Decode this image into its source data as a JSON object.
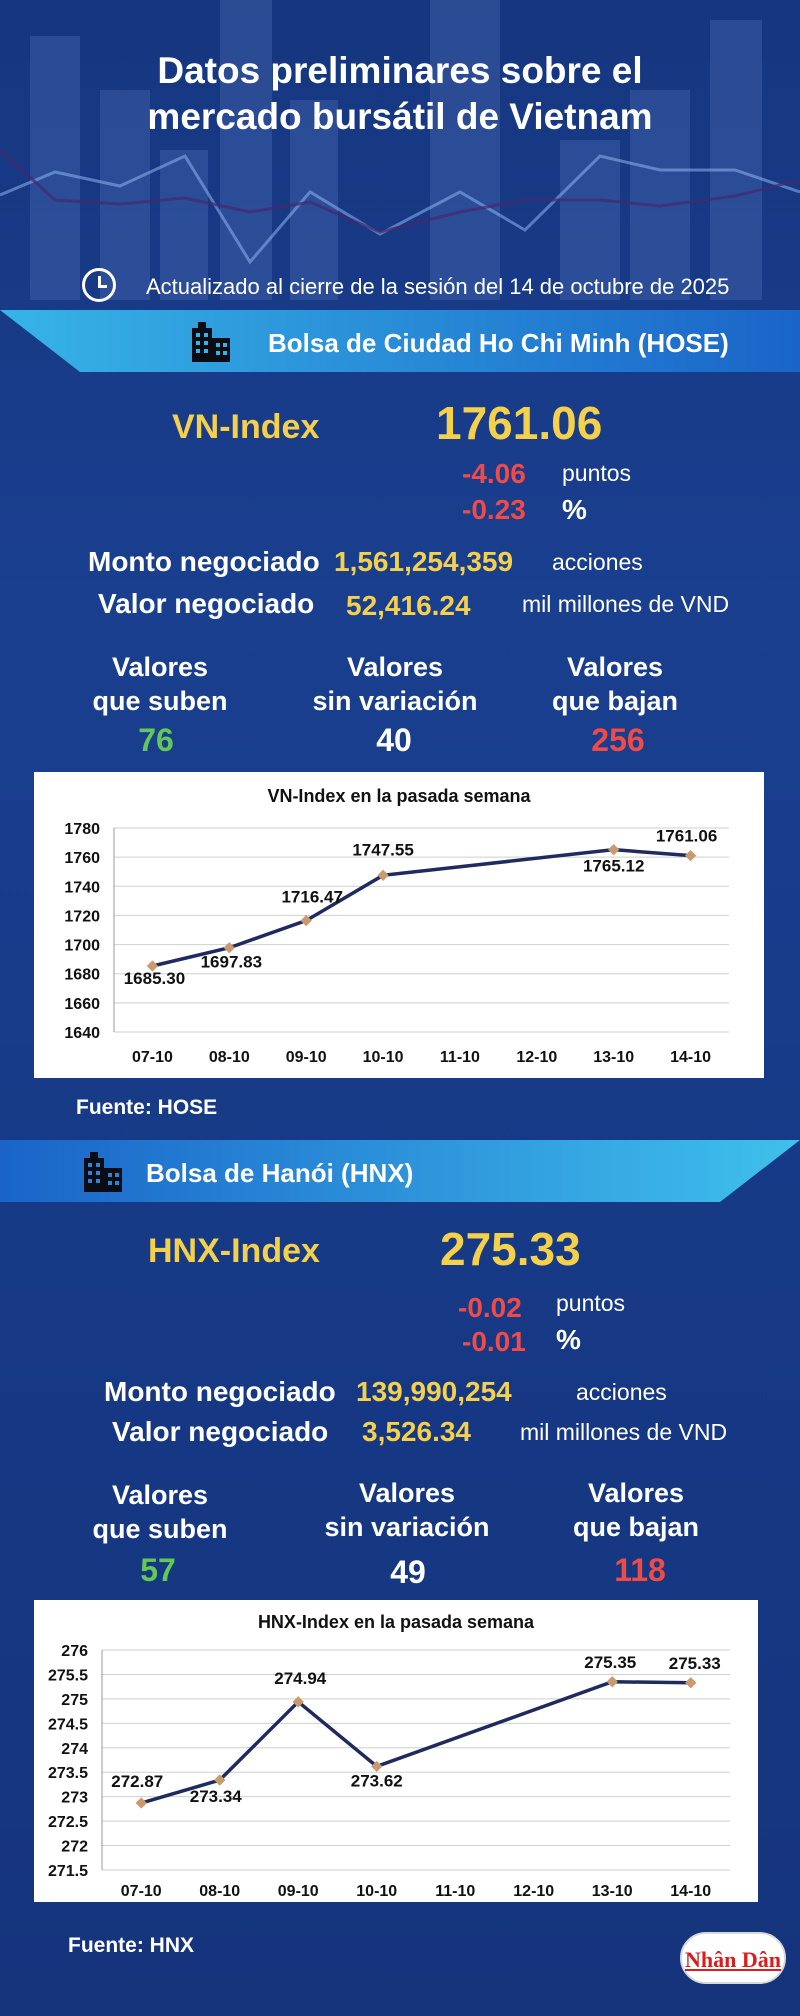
{
  "header": {
    "title_line1": "Datos preliminares sobre el",
    "title_line2": "mercado bursátil de Vietnam",
    "updated": "Actualizado al cierre de la sesión del 14 de octubre de 2025",
    "clock_icon": "clock-icon"
  },
  "hose": {
    "band_label": "Bolsa de Ciudad Ho Chi Minh (HOSE)",
    "index_name": "VN-Index",
    "index_value": "1761.06",
    "change_points": "-4.06",
    "points_unit": "puntos",
    "change_percent": "-0.23",
    "percent_unit": "%",
    "volume_label": "Monto negociado",
    "volume_value": "1,561,254,359",
    "volume_unit": "acciones",
    "value_label": "Valor negociado",
    "value_value": "52,416.24",
    "value_unit": "mil millones de VND",
    "up_label_1": "Valores",
    "up_label_2": "que suben",
    "up_count": "76",
    "flat_label_1": "Valores",
    "flat_label_2": "sin variación",
    "flat_count": "40",
    "down_label_1": "Valores",
    "down_label_2": "que bajan",
    "down_count": "256",
    "source": "Fuente: HOSE"
  },
  "hnx": {
    "band_label": "Bolsa de Hanói (HNX)",
    "index_name": "HNX-Index",
    "index_value": "275.33",
    "change_points": "-0.02",
    "points_unit": "puntos",
    "change_percent": "-0.01",
    "percent_unit": "%",
    "volume_label": "Monto negociado",
    "volume_value": "139,990,254",
    "volume_unit": "acciones",
    "value_label": "Valor negociado",
    "value_value": "3,526.34",
    "value_unit": "mil millones de VND",
    "up_label_1": "Valores",
    "up_label_2": "que suben",
    "up_count": "57",
    "flat_label_1": "Valores",
    "flat_label_2": "sin variación",
    "flat_count": "49",
    "down_label_1": "Valores",
    "down_label_2": "que bajan",
    "down_count": "118",
    "source": "Fuente:  HNX"
  },
  "logo_text": "Nhân Dân",
  "colors": {
    "accent_yellow": "#f5d04a",
    "down_red": "#f04b46",
    "up_green": "#64c857",
    "line_navy": "#1f2a5e",
    "marker": "#c99a6e"
  },
  "chart_data": [
    {
      "type": "line",
      "title": "VN-Index en la pasada semana",
      "categories": [
        "07-10",
        "08-10",
        "09-10",
        "10-10",
        "11-10",
        "12-10",
        "13-10",
        "14-10"
      ],
      "points": [
        {
          "x": "07-10",
          "y": 1685.3,
          "label": "1685.30"
        },
        {
          "x": "08-10",
          "y": 1697.83,
          "label": "1697.83"
        },
        {
          "x": "09-10",
          "y": 1716.47,
          "label": "1716.47"
        },
        {
          "x": "10-10",
          "y": 1747.55,
          "label": "1747.55"
        },
        {
          "x": "13-10",
          "y": 1765.12,
          "label": "1765.12"
        },
        {
          "x": "14-10",
          "y": 1761.06,
          "label": "1761.06"
        }
      ],
      "ylim": [
        1640,
        1780
      ],
      "yticks": [
        "1640",
        "1660",
        "1680",
        "1700",
        "1720",
        "1740",
        "1760",
        "1780"
      ],
      "grid": true,
      "legend": "none"
    },
    {
      "type": "line",
      "title": "HNX-Index en la pasada semana",
      "categories": [
        "07-10",
        "08-10",
        "09-10",
        "10-10",
        "11-10",
        "12-10",
        "13-10",
        "14-10"
      ],
      "points": [
        {
          "x": "07-10",
          "y": 272.87,
          "label": "272.87"
        },
        {
          "x": "08-10",
          "y": 273.34,
          "label": "273.34"
        },
        {
          "x": "09-10",
          "y": 274.94,
          "label": "274.94"
        },
        {
          "x": "10-10",
          "y": 273.62,
          "label": "273.62"
        },
        {
          "x": "13-10",
          "y": 275.35,
          "label": "275.35"
        },
        {
          "x": "14-10",
          "y": 275.33,
          "label": "275.33"
        }
      ],
      "ylim": [
        271.5,
        276
      ],
      "yticks": [
        "271.5",
        "272",
        "272.5",
        "273",
        "273.5",
        "274",
        "274.5",
        "275",
        "275.5",
        "276"
      ],
      "grid": true,
      "legend": "none"
    }
  ]
}
